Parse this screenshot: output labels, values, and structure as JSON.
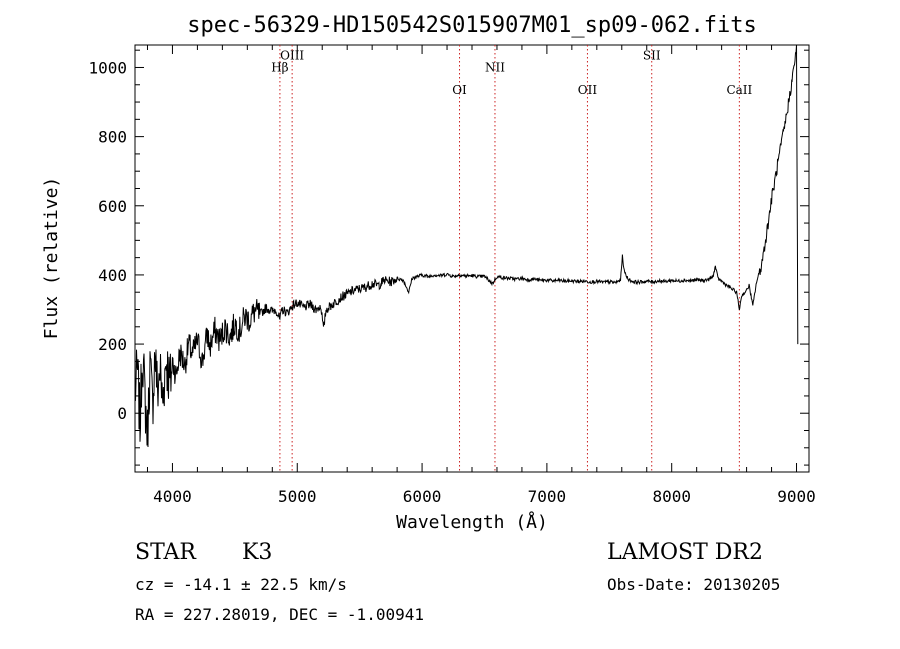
{
  "chart_data": {
    "type": "line",
    "title": "spec-56329-HD150542S015907M01_sp09-062.fits",
    "xlabel": "Wavelength (Å)",
    "ylabel": "Flux (relative)",
    "xlim": [
      3700,
      9100
    ],
    "ylim": [
      -170,
      1065
    ],
    "x_ticks": [
      4000,
      5000,
      6000,
      7000,
      8000,
      9000
    ],
    "y_ticks": [
      0,
      200,
      400,
      600,
      800,
      1000
    ],
    "x_tick_labels": [
      "4000",
      "5000",
      "6000",
      "7000",
      "8000",
      "9000"
    ],
    "y_tick_labels": [
      "0",
      "200",
      "400",
      "600",
      "800",
      "1000"
    ],
    "grid": false,
    "lines": [
      {
        "label": "Hβ",
        "wavelength": 4861,
        "label_flux": 1000
      },
      {
        "label": "OIII",
        "wavelength": 4959,
        "label_flux": 1035
      },
      {
        "label": "OI",
        "wavelength": 6300,
        "label_flux": 935
      },
      {
        "label": "NII",
        "wavelength": 6584,
        "label_flux": 1000
      },
      {
        "label": "OII",
        "wavelength": 7325,
        "label_flux": 935
      },
      {
        "label": "SII",
        "wavelength": 7840,
        "label_flux": 1035
      },
      {
        "label": "CaII",
        "wavelength": 8542,
        "label_flux": 935
      }
    ],
    "series": [
      {
        "color": "#000000",
        "points": [
          [
            3700,
            60
          ],
          [
            3720,
            120
          ],
          [
            3740,
            -30
          ],
          [
            3760,
            180
          ],
          [
            3780,
            40
          ],
          [
            3800,
            -60
          ],
          [
            3820,
            140
          ],
          [
            3840,
            20
          ],
          [
            3860,
            180
          ],
          [
            3880,
            60
          ],
          [
            3900,
            130
          ],
          [
            3920,
            30
          ],
          [
            3950,
            160
          ],
          [
            3980,
            80
          ],
          [
            4000,
            150
          ],
          [
            4030,
            110
          ],
          [
            4060,
            175
          ],
          [
            4100,
            140
          ],
          [
            4130,
            200
          ],
          [
            4160,
            170
          ],
          [
            4200,
            210
          ],
          [
            4240,
            150
          ],
          [
            4280,
            230
          ],
          [
            4300,
            190
          ],
          [
            4340,
            240
          ],
          [
            4380,
            210
          ],
          [
            4420,
            250
          ],
          [
            4460,
            220
          ],
          [
            4500,
            260
          ],
          [
            4540,
            240
          ],
          [
            4580,
            280
          ],
          [
            4620,
            270
          ],
          [
            4660,
            295
          ],
          [
            4700,
            285
          ],
          [
            4750,
            305
          ],
          [
            4800,
            295
          ],
          [
            4830,
            300
          ],
          [
            4861,
            270
          ],
          [
            4880,
            300
          ],
          [
            4920,
            290
          ],
          [
            4959,
            310
          ],
          [
            5000,
            320
          ],
          [
            5050,
            305
          ],
          [
            5100,
            315
          ],
          [
            5150,
            300
          ],
          [
            5190,
            310
          ],
          [
            5210,
            240
          ],
          [
            5230,
            300
          ],
          [
            5300,
            320
          ],
          [
            5350,
            335
          ],
          [
            5400,
            345
          ],
          [
            5450,
            355
          ],
          [
            5500,
            360
          ],
          [
            5550,
            365
          ],
          [
            5600,
            375
          ],
          [
            5650,
            370
          ],
          [
            5700,
            385
          ],
          [
            5750,
            380
          ],
          [
            5800,
            390
          ],
          [
            5850,
            385
          ],
          [
            5893,
            350
          ],
          [
            5920,
            390
          ],
          [
            5960,
            395
          ],
          [
            6000,
            400
          ],
          [
            6050,
            395
          ],
          [
            6100,
            400
          ],
          [
            6150,
            398
          ],
          [
            6200,
            402
          ],
          [
            6250,
            396
          ],
          [
            6300,
            400
          ],
          [
            6350,
            397
          ],
          [
            6400,
            398
          ],
          [
            6450,
            395
          ],
          [
            6500,
            396
          ],
          [
            6563,
            375
          ],
          [
            6600,
            395
          ],
          [
            6650,
            392
          ],
          [
            6700,
            390
          ],
          [
            6750,
            388
          ],
          [
            6800,
            390
          ],
          [
            6850,
            386
          ],
          [
            6900,
            388
          ],
          [
            6950,
            384
          ],
          [
            7000,
            385
          ],
          [
            7050,
            383
          ],
          [
            7100,
            384
          ],
          [
            7150,
            382
          ],
          [
            7200,
            383
          ],
          [
            7250,
            381
          ],
          [
            7300,
            382
          ],
          [
            7350,
            380
          ],
          [
            7400,
            381
          ],
          [
            7450,
            379
          ],
          [
            7500,
            380
          ],
          [
            7550,
            378
          ],
          [
            7590,
            385
          ],
          [
            7605,
            455
          ],
          [
            7620,
            410
          ],
          [
            7640,
            395
          ],
          [
            7660,
            385
          ],
          [
            7700,
            380
          ],
          [
            7750,
            379
          ],
          [
            7800,
            382
          ],
          [
            7850,
            380
          ],
          [
            7900,
            383
          ],
          [
            7950,
            381
          ],
          [
            8000,
            384
          ],
          [
            8050,
            382
          ],
          [
            8100,
            385
          ],
          [
            8150,
            383
          ],
          [
            8200,
            386
          ],
          [
            8250,
            384
          ],
          [
            8300,
            387
          ],
          [
            8330,
            395
          ],
          [
            8350,
            425
          ],
          [
            8370,
            390
          ],
          [
            8400,
            382
          ],
          [
            8440,
            370
          ],
          [
            8480,
            360
          ],
          [
            8520,
            350
          ],
          [
            8542,
            300
          ],
          [
            8560,
            340
          ],
          [
            8600,
            355
          ],
          [
            8620,
            370
          ],
          [
            8650,
            310
          ],
          [
            8680,
            380
          ],
          [
            8720,
            430
          ],
          [
            8760,
            520
          ],
          [
            8800,
            620
          ],
          [
            8840,
            700
          ],
          [
            8880,
            780
          ],
          [
            8920,
            860
          ],
          [
            8950,
            930
          ],
          [
            8980,
            1000
          ],
          [
            9000,
            1065
          ],
          [
            9010,
            200
          ]
        ]
      }
    ]
  },
  "labels": {
    "object_class": "STAR",
    "subclass": "K3",
    "survey": "LAMOST DR2",
    "cz": "cz = -14.1 ± 22.5 km/s",
    "obs_date": "Obs-Date: 20130205",
    "radec": "RA = 227.28019, DEC =  -1.00941"
  }
}
